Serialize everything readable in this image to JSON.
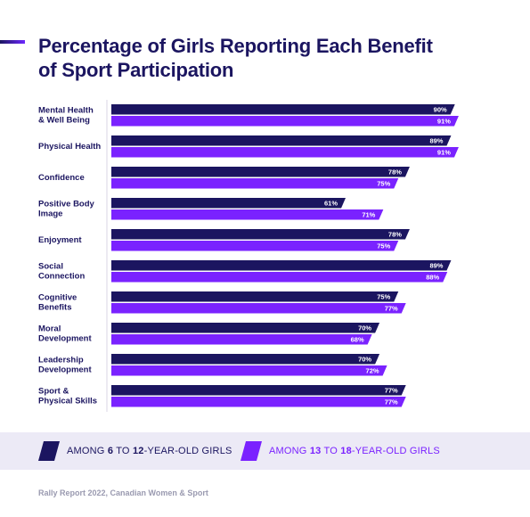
{
  "header": {
    "title_line1": "Percentage of Girls Reporting Each Benefit",
    "title_line2": "of Sport Participation"
  },
  "colors": {
    "dark": "#1b1560",
    "purple": "#7a22ff",
    "legend_bg": "#eceaf6"
  },
  "chart_data": {
    "type": "bar",
    "orientation": "horizontal",
    "title": "Percentage of Girls Reporting Each Benefit of Sport Participation",
    "categories": [
      [
        "Mental Health",
        "& Well Being"
      ],
      [
        "Physical Health"
      ],
      [
        "Confidence"
      ],
      [
        "Positive Body",
        "Image"
      ],
      [
        "Enjoyment"
      ],
      [
        "Social",
        "Connection"
      ],
      [
        "Cognitive",
        "Benefits"
      ],
      [
        "Moral",
        "Development"
      ],
      [
        "Leadership",
        "Development"
      ],
      [
        "Sport &",
        "Physical Skills"
      ]
    ],
    "series": [
      {
        "name": "AMONG 6 TO 12-YEAR-OLD GIRLS",
        "color": "#1b1560",
        "values": [
          90,
          89,
          78,
          61,
          78,
          89,
          75,
          70,
          70,
          77
        ]
      },
      {
        "name": "AMONG 13 TO 18-YEAR-OLD GIRLS",
        "color": "#7a22ff",
        "values": [
          91,
          91,
          75,
          71,
          75,
          88,
          77,
          68,
          72,
          77
        ]
      }
    ],
    "value_suffix": "%",
    "xlim": [
      0,
      100
    ],
    "legend_position": "bottom"
  },
  "legend": {
    "item1": {
      "prefix": "AMONG ",
      "n1": "6",
      "mid": " TO ",
      "n2": "12",
      "suffix": "-YEAR-OLD GIRLS"
    },
    "item2": {
      "prefix": "AMONG ",
      "n1": "13",
      "mid": " TO ",
      "n2": "18",
      "suffix": "-YEAR-OLD GIRLS"
    }
  },
  "footer": {
    "source": "Rally Report 2022, Canadian Women & Sport"
  }
}
